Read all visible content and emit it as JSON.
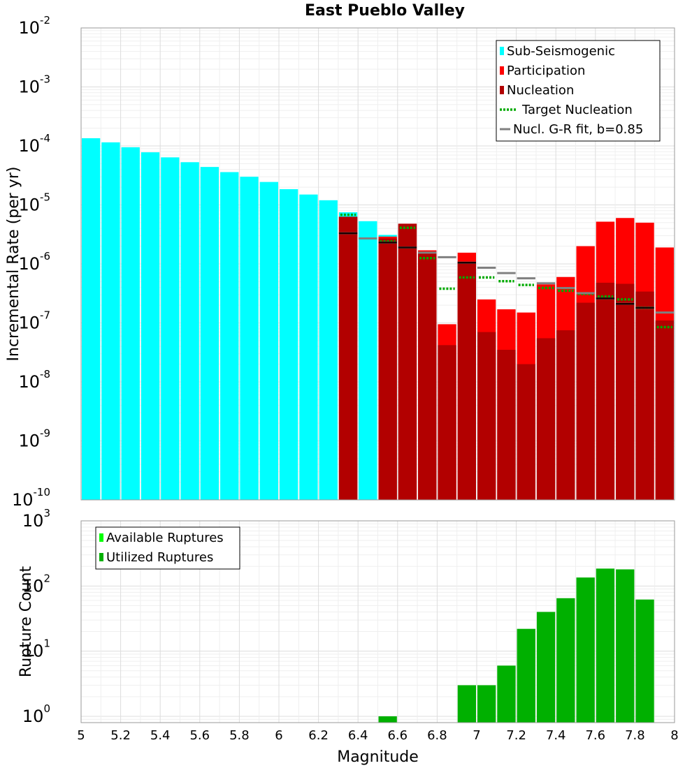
{
  "chart_data": [
    {
      "type": "bar",
      "title": "East Pueblo Valley",
      "xlabel": "",
      "ylabel": "Incremental Rate (per yr)",
      "xlim": [
        5,
        8
      ],
      "ylim": [
        1e-10,
        0.01
      ],
      "yscale": "log",
      "ytick_exponents": [
        "-10",
        "-9",
        "-8",
        "-7",
        "-6",
        "-5",
        "-4",
        "-3",
        "-2"
      ],
      "ytick_base": "10",
      "bin_width": 0.1,
      "grid": true,
      "legend_position": "top-right",
      "legend": [
        {
          "label": "Sub-Seismogenic",
          "color": "#00ffff",
          "style": "bar"
        },
        {
          "label": "Participation",
          "color": "#ff0000",
          "style": "bar"
        },
        {
          "label": "Nucleation",
          "color": "#b20000",
          "style": "bar"
        },
        {
          "label": "Target Nucleation",
          "color": "#00aa00",
          "style": "dotted"
        },
        {
          "label": "Nucl. G-R fit, b=0.85",
          "color": "#808080",
          "style": "line"
        }
      ],
      "series": [
        {
          "name": "Sub-Seismogenic",
          "color": "#00ffff",
          "x": [
            5.05,
            5.15,
            5.25,
            5.35,
            5.45,
            5.55,
            5.65,
            5.75,
            5.85,
            5.95,
            6.05,
            6.15,
            6.25,
            6.35,
            6.45,
            6.55
          ],
          "values": [
            0.000135,
            0.000115,
            9.5e-05,
            7.8e-05,
            6.4e-05,
            5.3e-05,
            4.4e-05,
            3.6e-05,
            3e-05,
            2.45e-05,
            1.85e-05,
            1.5e-05,
            1.2e-05,
            7.5e-06,
            5.3e-06,
            3.1e-06
          ]
        },
        {
          "name": "Participation",
          "color": "#ff0000",
          "x": [
            6.35,
            6.55,
            6.65,
            6.75,
            6.85,
            6.95,
            7.05,
            7.15,
            7.25,
            7.35,
            7.45,
            7.55,
            7.65,
            7.75,
            7.85,
            7.95
          ],
          "values": [
            6.3e-06,
            2.9e-06,
            4.8e-06,
            1.7e-06,
            9.5e-08,
            1.55e-06,
            2.5e-07,
            1.7e-07,
            1.5e-07,
            4.5e-07,
            6e-07,
            2e-06,
            5.2e-06,
            6e-06,
            5e-06,
            1.9e-06
          ]
        },
        {
          "name": "Nucleation",
          "color": "#b20000",
          "x": [
            6.35,
            6.55,
            6.65,
            6.75,
            6.85,
            6.95,
            7.05,
            7.15,
            7.25,
            7.35,
            7.45,
            7.55,
            7.65,
            7.75,
            7.85,
            7.95
          ],
          "values": [
            6.3e-06,
            2.7e-06,
            4.8e-06,
            1.5e-06,
            4.2e-08,
            1.1e-06,
            7e-08,
            3.5e-08,
            2e-08,
            5.5e-08,
            7.5e-08,
            2.2e-07,
            4.8e-07,
            4.6e-07,
            3.4e-07,
            1.1e-07
          ]
        },
        {
          "name": "Target Nucleation",
          "color": "#00aa00",
          "x": [
            6.35,
            6.55,
            6.65,
            6.75,
            6.85,
            6.95,
            7.05,
            7.15,
            7.25,
            7.35,
            7.45,
            7.55,
            7.65,
            7.75,
            7.85,
            7.95
          ],
          "values": [
            6.8e-06,
            2.4e-06,
            4.1e-06,
            1.25e-06,
            3.8e-07,
            5.9e-07,
            5.9e-07,
            5.1e-07,
            4.4e-07,
            3.9e-07,
            3.5e-07,
            3.1e-07,
            2.8e-07,
            2.5e-07,
            1.8e-07,
            8.5e-08
          ]
        },
        {
          "name": "Nucl. G-R fit, b=0.85",
          "color": "#808080",
          "x": [
            6.35,
            6.45,
            6.55,
            6.65,
            6.75,
            6.85,
            6.95,
            7.05,
            7.15,
            7.25,
            7.35,
            7.45,
            7.55,
            7.65,
            7.75,
            7.85,
            7.95
          ],
          "values": [
            3.3e-06,
            2.7e-06,
            2.3e-06,
            1.9e-06,
            1.55e-06,
            1.3e-06,
            1.05e-06,
            8.6e-07,
            7e-07,
            5.7e-07,
            4.7e-07,
            3.9e-07,
            3.2e-07,
            2.6e-07,
            2.1e-07,
            1.8e-07,
            1.5e-07
          ]
        }
      ]
    },
    {
      "type": "bar",
      "title": "",
      "xlabel": "Magnitude",
      "ylabel": "Rupture Count",
      "xlim": [
        5,
        8
      ],
      "ylim": [
        0.8,
        1000
      ],
      "yscale": "log",
      "ytick_exponents": [
        "0",
        "1",
        "2",
        "3"
      ],
      "ytick_base": "10",
      "xticks": [
        "5",
        "5.2",
        "5.4",
        "5.6",
        "5.8",
        "6",
        "6.2",
        "6.4",
        "6.6",
        "6.8",
        "7",
        "7.2",
        "7.4",
        "7.6",
        "7.8",
        "8"
      ],
      "bin_width": 0.1,
      "grid": true,
      "legend_position": "top-left",
      "legend": [
        {
          "label": "Available Ruptures",
          "color": "#00ff00",
          "style": "bar"
        },
        {
          "label": "Utilized Ruptures",
          "color": "#00b000",
          "style": "bar"
        }
      ],
      "series": [
        {
          "name": "Utilized Ruptures",
          "color": "#00b000",
          "x": [
            6.55,
            6.95,
            7.05,
            7.15,
            7.25,
            7.35,
            7.45,
            7.55,
            7.65,
            7.75,
            7.85
          ],
          "values": [
            1,
            3,
            3,
            6,
            22,
            40,
            65,
            135,
            185,
            180,
            62
          ]
        }
      ]
    }
  ]
}
